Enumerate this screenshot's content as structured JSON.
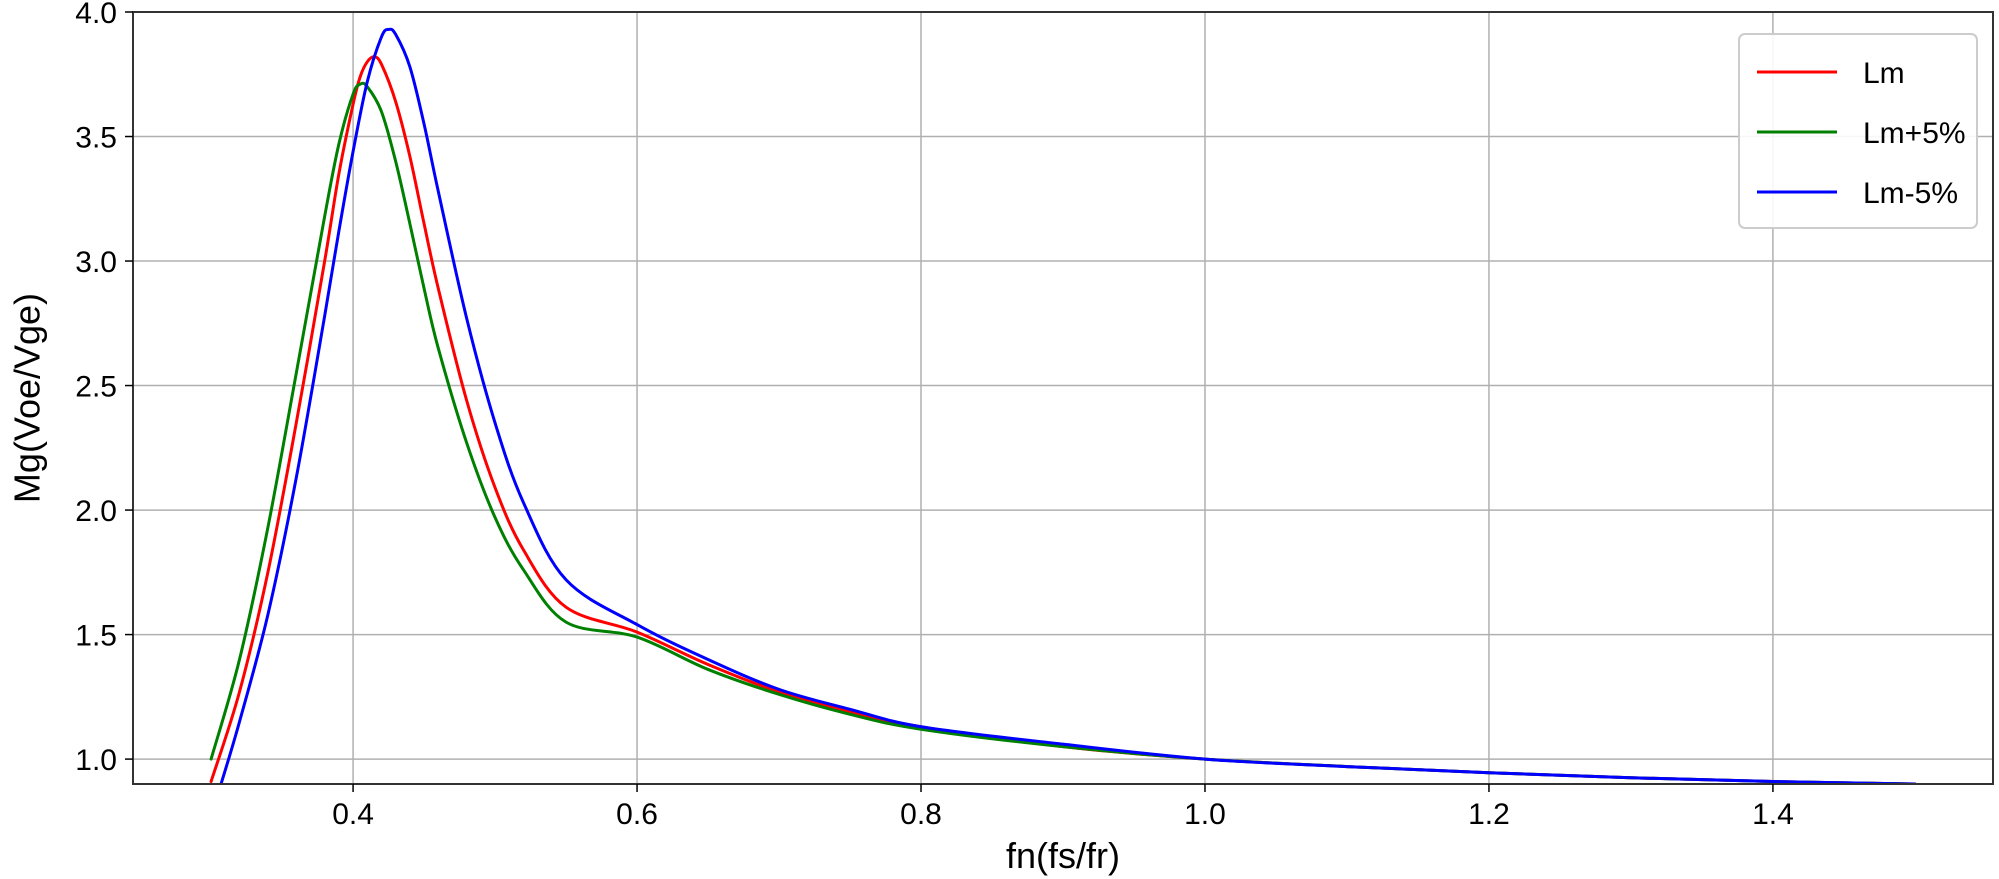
{
  "chart_data": {
    "type": "line",
    "title": "",
    "xlabel": "fn(fs/fr)",
    "ylabel": "Mg(Voe/Vge)",
    "xlim": [
      0.245,
      1.555
    ],
    "ylim": [
      0.9,
      4.0
    ],
    "xticks": [
      0.4,
      0.6,
      0.8,
      1.0,
      1.2,
      1.4
    ],
    "xtick_labels": [
      "0.4",
      "0.6",
      "0.8",
      "1.0",
      "1.2",
      "1.4"
    ],
    "yticks": [
      1.0,
      1.5,
      2.0,
      2.5,
      3.0,
      3.5,
      4.0
    ],
    "ytick_labels": [
      "1.0",
      "1.5",
      "2.0",
      "2.5",
      "3.0",
      "3.5",
      "4.0"
    ],
    "grid": true,
    "legend_position": "top-right",
    "series": [
      {
        "name": "Lm",
        "color": "#ff0000",
        "points": [
          [
            0.3,
            0.91
          ],
          [
            0.32,
            1.27
          ],
          [
            0.34,
            1.75
          ],
          [
            0.36,
            2.35
          ],
          [
            0.38,
            3.0
          ],
          [
            0.39,
            3.35
          ],
          [
            0.4,
            3.63
          ],
          [
            0.405,
            3.74
          ],
          [
            0.41,
            3.8
          ],
          [
            0.415,
            3.82
          ],
          [
            0.42,
            3.79
          ],
          [
            0.43,
            3.64
          ],
          [
            0.44,
            3.42
          ],
          [
            0.45,
            3.15
          ],
          [
            0.46,
            2.89
          ],
          [
            0.48,
            2.44
          ],
          [
            0.5,
            2.09
          ],
          [
            0.52,
            1.84
          ],
          [
            0.55,
            1.61
          ],
          [
            0.6,
            1.51
          ],
          [
            0.65,
            1.38
          ],
          [
            0.7,
            1.27
          ],
          [
            0.75,
            1.19
          ],
          [
            0.8,
            1.13
          ],
          [
            0.9,
            1.05
          ],
          [
            1.0,
            1.0
          ],
          [
            1.1,
            0.97
          ],
          [
            1.2,
            0.945
          ],
          [
            1.3,
            0.925
          ],
          [
            1.4,
            0.91
          ],
          [
            1.5,
            0.9
          ]
        ]
      },
      {
        "name": "Lm+5%",
        "color": "#008000",
        "points": [
          [
            0.3,
            1.0
          ],
          [
            0.32,
            1.4
          ],
          [
            0.34,
            1.93
          ],
          [
            0.36,
            2.55
          ],
          [
            0.38,
            3.18
          ],
          [
            0.39,
            3.47
          ],
          [
            0.4,
            3.67
          ],
          [
            0.405,
            3.71
          ],
          [
            0.41,
            3.7
          ],
          [
            0.42,
            3.6
          ],
          [
            0.43,
            3.4
          ],
          [
            0.44,
            3.15
          ],
          [
            0.45,
            2.89
          ],
          [
            0.46,
            2.65
          ],
          [
            0.48,
            2.27
          ],
          [
            0.5,
            1.97
          ],
          [
            0.52,
            1.76
          ],
          [
            0.55,
            1.55
          ],
          [
            0.6,
            1.49
          ],
          [
            0.65,
            1.36
          ],
          [
            0.7,
            1.26
          ],
          [
            0.75,
            1.18
          ],
          [
            0.8,
            1.12
          ],
          [
            0.9,
            1.05
          ],
          [
            1.0,
            1.0
          ],
          [
            1.1,
            0.97
          ],
          [
            1.2,
            0.945
          ],
          [
            1.3,
            0.925
          ],
          [
            1.4,
            0.91
          ],
          [
            1.5,
            0.9
          ]
        ]
      },
      {
        "name": "Lm-5%",
        "color": "#0000ff",
        "points": [
          [
            0.307,
            0.9
          ],
          [
            0.32,
            1.15
          ],
          [
            0.34,
            1.58
          ],
          [
            0.36,
            2.13
          ],
          [
            0.38,
            2.78
          ],
          [
            0.39,
            3.12
          ],
          [
            0.4,
            3.44
          ],
          [
            0.41,
            3.72
          ],
          [
            0.42,
            3.9
          ],
          [
            0.425,
            3.93
          ],
          [
            0.43,
            3.91
          ],
          [
            0.44,
            3.78
          ],
          [
            0.45,
            3.55
          ],
          [
            0.46,
            3.28
          ],
          [
            0.48,
            2.77
          ],
          [
            0.5,
            2.35
          ],
          [
            0.52,
            2.03
          ],
          [
            0.55,
            1.72
          ],
          [
            0.6,
            1.54
          ],
          [
            0.65,
            1.4
          ],
          [
            0.7,
            1.28
          ],
          [
            0.75,
            1.2
          ],
          [
            0.8,
            1.13
          ],
          [
            0.9,
            1.06
          ],
          [
            1.0,
            1.0
          ],
          [
            1.1,
            0.97
          ],
          [
            1.2,
            0.945
          ],
          [
            1.3,
            0.925
          ],
          [
            1.4,
            0.91
          ],
          [
            1.5,
            0.9
          ]
        ]
      }
    ]
  }
}
